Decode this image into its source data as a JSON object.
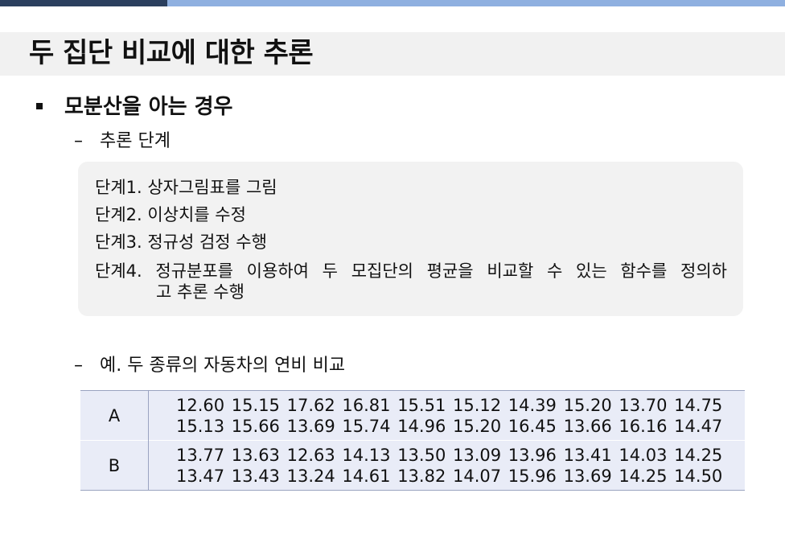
{
  "slide": {
    "title": "두 집단 비교에 대한 추론",
    "bullet": "모분산을 아는 경우",
    "sub_dash": "–",
    "subheading_1": "추론 단계",
    "steps": [
      "단계1. 상자그림표를 그림",
      "단계2. 이상치를 수정",
      "단계3. 정규성 검정 수행"
    ],
    "step4_line1": "단계4. 정규분포를 이용하여 두 모집단의 평균을 비교할 수 있는 함수를 정의하",
    "step4_line2": "고 추론 수행",
    "subheading_2": "예. 두 종류의 자동차의 연비 비교"
  },
  "table": {
    "rows": [
      {
        "label": "A",
        "line1": [
          "12.60",
          "15.15",
          "17.62",
          "16.81",
          "15.51",
          "15.12",
          "14.39",
          "15.20",
          "13.70",
          "14.75"
        ],
        "line2": [
          "15.13",
          "15.66",
          "13.69",
          "15.74",
          "14.96",
          "15.20",
          "16.45",
          "13.66",
          "16.16",
          "14.47"
        ]
      },
      {
        "label": "B",
        "line1": [
          "13.77",
          "13.63",
          "12.63",
          "14.13",
          "13.50",
          "13.09",
          "13.96",
          "13.41",
          "14.03",
          "14.25"
        ],
        "line2": [
          "13.47",
          "13.43",
          "13.24",
          "14.61",
          "13.82",
          "14.07",
          "15.96",
          "13.69",
          "14.25",
          "14.50"
        ]
      }
    ]
  },
  "colors": {
    "top_bar_dark": "#2b3f5e",
    "top_bar_light": "#8fb0e0",
    "title_band": "#f1f1f1",
    "step_box": "#f2f2f2",
    "table_fill": "#e9ecf7"
  }
}
